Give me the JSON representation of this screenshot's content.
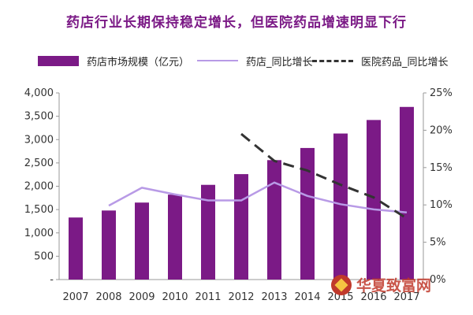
{
  "title": "药店行业长期保持稳定增长，但医院药品增速明显下行",
  "colors": {
    "bar": "#7b1a86",
    "pharmacy_line": "#b89ae6",
    "hospital_line": "#333333",
    "title": "#7b1a86"
  },
  "chart_data": {
    "type": "bar",
    "categories": [
      "2007",
      "2008",
      "2009",
      "2010",
      "2011",
      "2012",
      "2013",
      "2014",
      "2015",
      "2016",
      "2017"
    ],
    "series": [
      {
        "name": "药店市场规模（亿元）",
        "type": "bar",
        "axis": "left",
        "values": [
          1330,
          1480,
          1650,
          1820,
          2030,
          2260,
          2560,
          2820,
          3130,
          3420,
          3700
        ]
      },
      {
        "name": "药店_同比增长",
        "type": "line",
        "axis": "right",
        "values": [
          null,
          9.9,
          12.3,
          11.4,
          10.6,
          10.6,
          13.0,
          11.2,
          10.1,
          9.4,
          9.0
        ]
      },
      {
        "name": "医院药品_同比增长",
        "type": "line",
        "style": "dashed",
        "axis": "right",
        "values": [
          null,
          null,
          null,
          null,
          null,
          19.5,
          15.9,
          14.6,
          12.7,
          11.0,
          8.2
        ]
      }
    ],
    "y_left": {
      "ticks": [
        "4,000",
        "3,500",
        "3,000",
        "2,500",
        "2,000",
        "1,500",
        "1,000",
        "500",
        "-"
      ],
      "ylim": [
        0,
        4000
      ]
    },
    "y_right": {
      "ticks": [
        "25%",
        "20%",
        "15%",
        "10%",
        "5%",
        "0%"
      ],
      "ylim": [
        0,
        25
      ]
    },
    "legend_position": "top",
    "grid": false
  },
  "watermark": {
    "text": "华夏致富网"
  }
}
